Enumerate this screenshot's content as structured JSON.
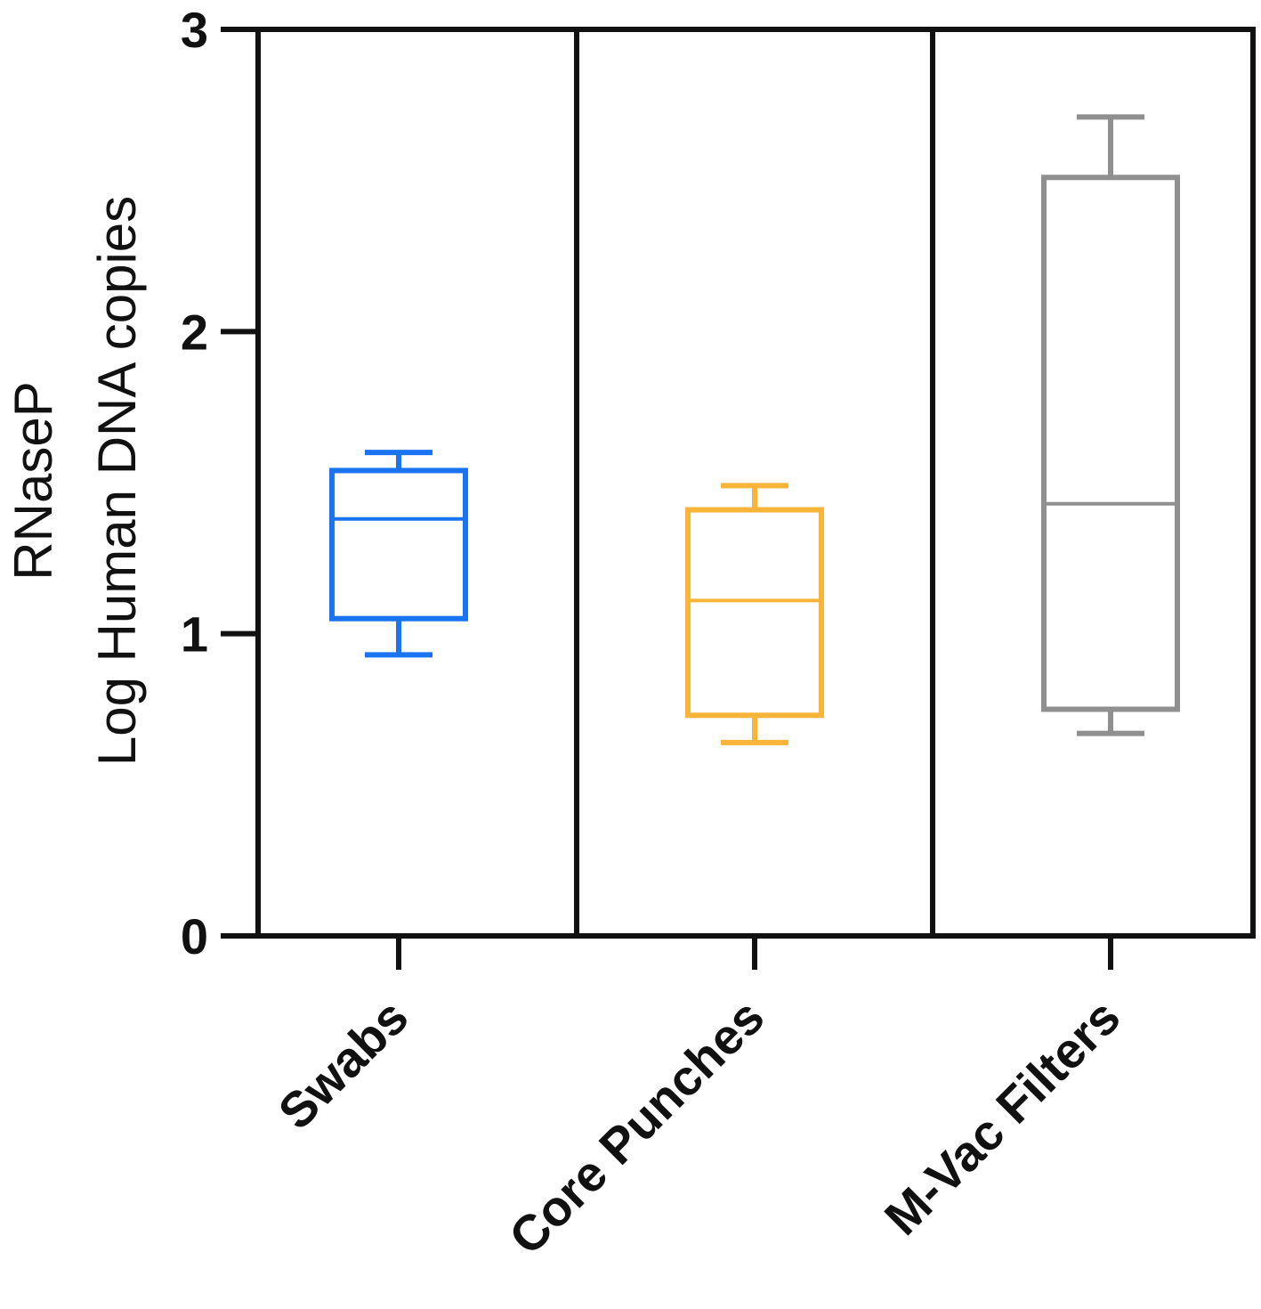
{
  "chart_data": {
    "type": "box",
    "ylabel_lines": [
      "RNaseP",
      "Log Human DNA copies"
    ],
    "ylim": [
      0,
      3
    ],
    "yticks": [
      "0",
      "1",
      "2",
      "3"
    ],
    "categories": [
      "Swabs",
      "Core Punches",
      "M-Vac Filters"
    ],
    "boxes": [
      {
        "category": "Swabs",
        "min": 0.93,
        "q1": 1.05,
        "median": 1.38,
        "q3": 1.54,
        "max": 1.6,
        "color": "#1a73f0"
      },
      {
        "category": "Core Punches",
        "min": 0.64,
        "q1": 0.73,
        "median": 1.11,
        "q3": 1.41,
        "max": 1.49,
        "color": "#f8b53a"
      },
      {
        "category": "M-Vac Filters",
        "min": 0.67,
        "q1": 0.75,
        "median": 1.43,
        "q3": 2.51,
        "max": 2.71,
        "color": "#909090"
      }
    ],
    "grid": false,
    "legend": "none"
  }
}
